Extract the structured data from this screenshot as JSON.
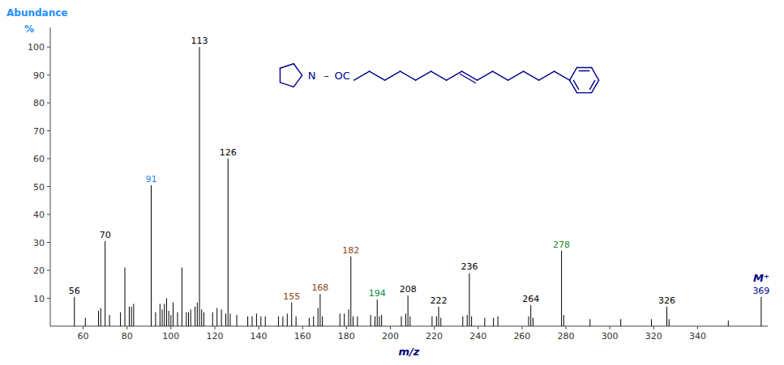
{
  "chart_data": {
    "type": "stem",
    "xlabel": "m/z",
    "xlabel_color": "#000080",
    "ylabel": [
      "Abundance",
      "%"
    ],
    "ylabel_color": "#1E90FF",
    "xlim": [
      45,
      372
    ],
    "ylim": [
      0,
      107
    ],
    "xticks": [
      60,
      80,
      100,
      120,
      140,
      160,
      180,
      200,
      220,
      240,
      260,
      280,
      300,
      320,
      340
    ],
    "yticks": [
      10,
      20,
      30,
      40,
      50,
      60,
      70,
      80,
      90,
      100
    ],
    "grid": false,
    "color": "#000000",
    "x": [
      56,
      61,
      67,
      68,
      70,
      72,
      77,
      79,
      81,
      82,
      83,
      91,
      93,
      95,
      96,
      97,
      98,
      99,
      100,
      101,
      103,
      105,
      107,
      108,
      109,
      111,
      112,
      113,
      114,
      115,
      119,
      121,
      123,
      125,
      126,
      127,
      130,
      135,
      137,
      139,
      141,
      143,
      149,
      151,
      153,
      155,
      157,
      163,
      165,
      167,
      168,
      169,
      177,
      179,
      181,
      182,
      183,
      185,
      191,
      193,
      194,
      195,
      196,
      205,
      207,
      208,
      209,
      219,
      221,
      222,
      223,
      233,
      235,
      236,
      237,
      243,
      247,
      249,
      263,
      264,
      265,
      278,
      279,
      291,
      305,
      319,
      326,
      327,
      354,
      369
    ],
    "values": [
      10.5,
      3.0,
      5.5,
      6.5,
      30.5,
      4.0,
      5.0,
      21.0,
      7.0,
      7.0,
      8.0,
      50.5,
      5.0,
      8.0,
      6.0,
      8.0,
      10.0,
      5.5,
      4.0,
      8.5,
      5.0,
      21.0,
      5.0,
      5.0,
      6.0,
      7.0,
      8.5,
      100.0,
      6.0,
      5.0,
      5.0,
      6.5,
      6.0,
      4.5,
      60.0,
      4.5,
      4.0,
      3.5,
      3.5,
      4.5,
      3.5,
      3.5,
      3.5,
      3.5,
      4.5,
      8.5,
      3.5,
      3.0,
      3.5,
      6.5,
      11.5,
      3.5,
      4.5,
      4.5,
      6.0,
      25.0,
      3.5,
      3.5,
      4.0,
      3.5,
      9.5,
      3.5,
      4.0,
      3.5,
      4.5,
      11.0,
      3.5,
      3.5,
      3.5,
      7.0,
      3.0,
      3.5,
      4.0,
      19.0,
      3.5,
      3.0,
      3.0,
      3.5,
      3.5,
      7.5,
      3.0,
      27.0,
      4.0,
      2.5,
      2.5,
      2.5,
      7.0,
      2.5,
      2.0,
      10.5
    ],
    "point_labels": [
      "56",
      null,
      null,
      null,
      "70",
      null,
      null,
      null,
      null,
      null,
      null,
      "91",
      null,
      null,
      null,
      null,
      null,
      null,
      null,
      null,
      null,
      null,
      null,
      null,
      null,
      null,
      null,
      "113",
      null,
      null,
      null,
      null,
      null,
      null,
      "126",
      null,
      null,
      null,
      null,
      null,
      null,
      null,
      null,
      null,
      null,
      "155",
      null,
      null,
      null,
      null,
      "168",
      null,
      null,
      null,
      null,
      "182",
      null,
      null,
      null,
      null,
      "194",
      null,
      null,
      null,
      null,
      "208",
      null,
      null,
      null,
      "222",
      null,
      null,
      null,
      "236",
      null,
      null,
      null,
      null,
      null,
      "264",
      null,
      "278",
      null,
      null,
      null,
      null,
      "326",
      null,
      null,
      "369"
    ],
    "label_colors": [
      "#000000",
      null,
      null,
      null,
      "#000000",
      null,
      null,
      null,
      null,
      null,
      null,
      "#1C86EE",
      null,
      null,
      null,
      null,
      null,
      null,
      null,
      null,
      null,
      null,
      null,
      null,
      null,
      null,
      null,
      "#000000",
      null,
      null,
      null,
      null,
      null,
      null,
      "#000000",
      null,
      null,
      null,
      null,
      null,
      null,
      null,
      null,
      null,
      null,
      "#8B4513",
      null,
      null,
      null,
      null,
      "#8B4513",
      null,
      null,
      null,
      null,
      "#8B4513",
      null,
      null,
      null,
      null,
      "#008B45",
      null,
      null,
      null,
      null,
      "#000000",
      null,
      null,
      null,
      "#000000",
      null,
      null,
      null,
      "#000000",
      null,
      null,
      null,
      null,
      null,
      "#000000",
      null,
      "#228B22",
      null,
      null,
      null,
      null,
      "#000000",
      null,
      null,
      "#00008B"
    ],
    "annotations": [
      {
        "text": "M⁺",
        "x": 369,
        "color": "#00008B"
      },
      {
        "text": "N",
        "color": "#00008B"
      },
      {
        "text": "–",
        "color": "#00008B"
      },
      {
        "text": "OC",
        "color": "#00008B"
      }
    ]
  }
}
